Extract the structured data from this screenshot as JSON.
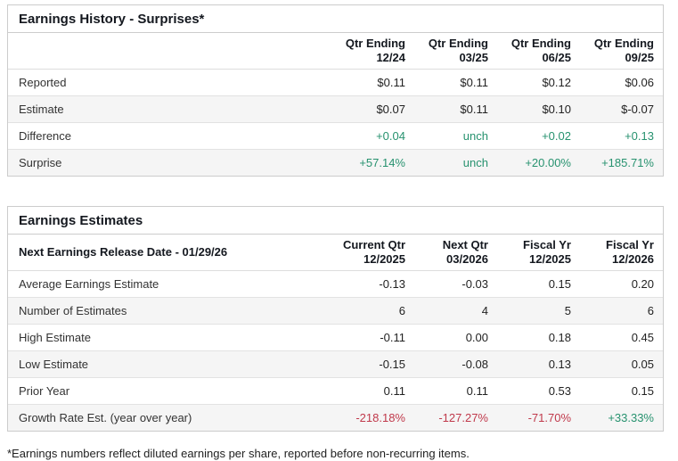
{
  "colors": {
    "positive": "#27926f",
    "negative": "#c0394b",
    "header_text": "#14181f",
    "panel_border": "#cccccc",
    "row_alt_bg": "#f5f5f5"
  },
  "history": {
    "title": "Earnings History - Surprises*",
    "columns": [
      {
        "period": "Qtr Ending",
        "date": "12/24"
      },
      {
        "period": "Qtr Ending",
        "date": "03/25"
      },
      {
        "period": "Qtr Ending",
        "date": "06/25"
      },
      {
        "period": "Qtr Ending",
        "date": "09/25"
      }
    ],
    "rows": [
      {
        "label": "Reported",
        "cells": [
          {
            "t": "$0.11",
            "c": ""
          },
          {
            "t": "$0.11",
            "c": ""
          },
          {
            "t": "$0.12",
            "c": ""
          },
          {
            "t": "$0.06",
            "c": ""
          }
        ]
      },
      {
        "label": "Estimate",
        "cells": [
          {
            "t": "$0.07",
            "c": ""
          },
          {
            "t": "$0.11",
            "c": ""
          },
          {
            "t": "$0.10",
            "c": ""
          },
          {
            "t": "$-0.07",
            "c": ""
          }
        ]
      },
      {
        "label": "Difference",
        "cells": [
          {
            "t": "+0.04",
            "c": "up"
          },
          {
            "t": "unch",
            "c": "up"
          },
          {
            "t": "+0.02",
            "c": "up"
          },
          {
            "t": "+0.13",
            "c": "up"
          }
        ]
      },
      {
        "label": "Surprise",
        "cells": [
          {
            "t": "+57.14%",
            "c": "up"
          },
          {
            "t": "unch",
            "c": "up"
          },
          {
            "t": "+20.00%",
            "c": "up"
          },
          {
            "t": "+185.71%",
            "c": "up"
          }
        ]
      }
    ]
  },
  "estimates": {
    "title": "Earnings Estimates",
    "release_label": "Next Earnings Release Date - 01/29/26",
    "columns": [
      {
        "period": "Current Qtr",
        "date": "12/2025"
      },
      {
        "period": "Next Qtr",
        "date": "03/2026"
      },
      {
        "period": "Fiscal Yr",
        "date": "12/2025"
      },
      {
        "period": "Fiscal Yr",
        "date": "12/2026"
      }
    ],
    "rows": [
      {
        "label": "Average Earnings Estimate",
        "cells": [
          {
            "t": "-0.13",
            "c": ""
          },
          {
            "t": "-0.03",
            "c": ""
          },
          {
            "t": "0.15",
            "c": ""
          },
          {
            "t": "0.20",
            "c": ""
          }
        ]
      },
      {
        "label": "Number of Estimates",
        "cells": [
          {
            "t": "6",
            "c": ""
          },
          {
            "t": "4",
            "c": ""
          },
          {
            "t": "5",
            "c": ""
          },
          {
            "t": "6",
            "c": ""
          }
        ]
      },
      {
        "label": "High Estimate",
        "cells": [
          {
            "t": "-0.11",
            "c": ""
          },
          {
            "t": "0.00",
            "c": ""
          },
          {
            "t": "0.18",
            "c": ""
          },
          {
            "t": "0.45",
            "c": ""
          }
        ]
      },
      {
        "label": "Low Estimate",
        "cells": [
          {
            "t": "-0.15",
            "c": ""
          },
          {
            "t": "-0.08",
            "c": ""
          },
          {
            "t": "0.13",
            "c": ""
          },
          {
            "t": "0.05",
            "c": ""
          }
        ]
      },
      {
        "label": "Prior Year",
        "cells": [
          {
            "t": "0.11",
            "c": ""
          },
          {
            "t": "0.11",
            "c": ""
          },
          {
            "t": "0.53",
            "c": ""
          },
          {
            "t": "0.15",
            "c": ""
          }
        ]
      },
      {
        "label": "Growth Rate Est. (year over year)",
        "cells": [
          {
            "t": "-218.18%",
            "c": "down"
          },
          {
            "t": "-127.27%",
            "c": "down"
          },
          {
            "t": "-71.70%",
            "c": "down"
          },
          {
            "t": "+33.33%",
            "c": "up"
          }
        ]
      }
    ]
  },
  "footnote": "*Earnings numbers reflect diluted earnings per share, reported before non-recurring items."
}
